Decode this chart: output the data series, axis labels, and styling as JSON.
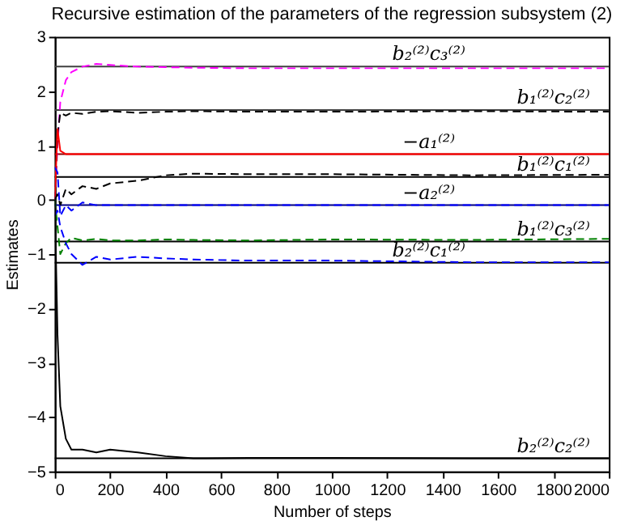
{
  "chart_data": {
    "type": "line",
    "title": "Recursive estimation of the parameters of the regression subsystem (2)",
    "xlabel": "Number of steps",
    "ylabel": "Estimates",
    "x": [
      0,
      10,
      20,
      40,
      60,
      100,
      150,
      200,
      300,
      400,
      500,
      700,
      1000,
      1500,
      2000
    ],
    "xlim": [
      0,
      2000
    ],
    "xticks": [
      0,
      200,
      400,
      600,
      800,
      1000,
      1200,
      1400,
      1600,
      1800,
      2000
    ],
    "ylim": [
      -5,
      3
    ],
    "yticks": [
      -5,
      -4,
      -3,
      -2,
      -1,
      0,
      1,
      2,
      3
    ],
    "grid": false,
    "series": [
      {
        "color": "#ff00ff",
        "line_style": "dashed",
        "values": [
          0,
          1.0,
          1.8,
          2.2,
          2.35,
          2.45,
          2.5,
          2.48,
          2.45,
          2.44,
          2.43,
          2.42,
          2.42,
          2.42,
          2.42
        ]
      },
      {
        "color": "#000000",
        "line_style": "dashed",
        "values": [
          0,
          1.2,
          1.6,
          1.55,
          1.6,
          1.58,
          1.62,
          1.63,
          1.6,
          1.62,
          1.63,
          1.62,
          1.62,
          1.63,
          1.62
        ]
      },
      {
        "color": "#ff0000",
        "line_style": "solid",
        "values": [
          0,
          1.3,
          0.9,
          0.84,
          0.84,
          0.84,
          0.84,
          0.84,
          0.84,
          0.84,
          0.84,
          0.84,
          0.84,
          0.84,
          0.84
        ]
      },
      {
        "color": "#000000",
        "line_style": "dashed",
        "values": [
          0,
          0.1,
          -0.1,
          0.2,
          0.1,
          0.25,
          0.2,
          0.3,
          0.35,
          0.45,
          0.48,
          0.47,
          0.47,
          0.45,
          0.46
        ]
      },
      {
        "color": "#0000ff",
        "line_style": "dashed",
        "values": [
          0.6,
          0.5,
          -0.3,
          -0.1,
          -0.2,
          -0.05,
          -0.1,
          -0.1,
          -0.1,
          -0.1,
          -0.1,
          -0.1,
          -0.1,
          -0.1,
          -0.1
        ]
      },
      {
        "color": "#008000",
        "line_style": "dashed",
        "values": [
          0,
          -0.5,
          -1.0,
          -0.8,
          -0.7,
          -0.75,
          -0.72,
          -0.75,
          -0.75,
          -0.73,
          -0.74,
          -0.75,
          -0.73,
          -0.74,
          -0.72
        ]
      },
      {
        "color": "#0000ff",
        "line_style": "dashed",
        "values": [
          -0.3,
          -0.2,
          -0.5,
          -0.8,
          -1.0,
          -1.2,
          -1.05,
          -1.1,
          -1.05,
          -1.08,
          -1.1,
          -1.12,
          -1.12,
          -1.15,
          -1.15
        ]
      },
      {
        "color": "#000000",
        "line_style": "solid",
        "values": [
          0,
          -2.5,
          -3.8,
          -4.4,
          -4.6,
          -4.6,
          -4.65,
          -4.6,
          -4.65,
          -4.72,
          -4.76,
          -4.75,
          -4.75,
          -4.76,
          -4.76
        ]
      }
    ],
    "ref_lines": [
      {
        "axis": "y",
        "value": 2.45,
        "label": "b₂⁽²⁾c₃⁽²⁾",
        "color": "#404040"
      },
      {
        "axis": "y",
        "value": 1.65,
        "label": "b₁⁽²⁾c₂⁽²⁾",
        "color": "#404040"
      },
      {
        "axis": "y",
        "value": 0.84,
        "label": "−a₁⁽²⁾",
        "color": "#8b0000"
      },
      {
        "axis": "y",
        "value": 0.42,
        "label": "b₁⁽²⁾c₁⁽²⁾",
        "color": "#000000"
      },
      {
        "axis": "y",
        "value": -0.1,
        "label": "−a₂⁽²⁾",
        "color": "#000080"
      },
      {
        "axis": "y",
        "value": -0.77,
        "label": "b₁⁽²⁾c₃⁽²⁾",
        "color": "#000000"
      },
      {
        "axis": "y",
        "value": -1.16,
        "label": "b₂⁽²⁾c₁⁽²⁾",
        "color": "#000000"
      },
      {
        "axis": "y",
        "value": -4.76,
        "label": "b₂⁽²⁾c₂⁽²⁾",
        "color": "#000000"
      }
    ]
  }
}
